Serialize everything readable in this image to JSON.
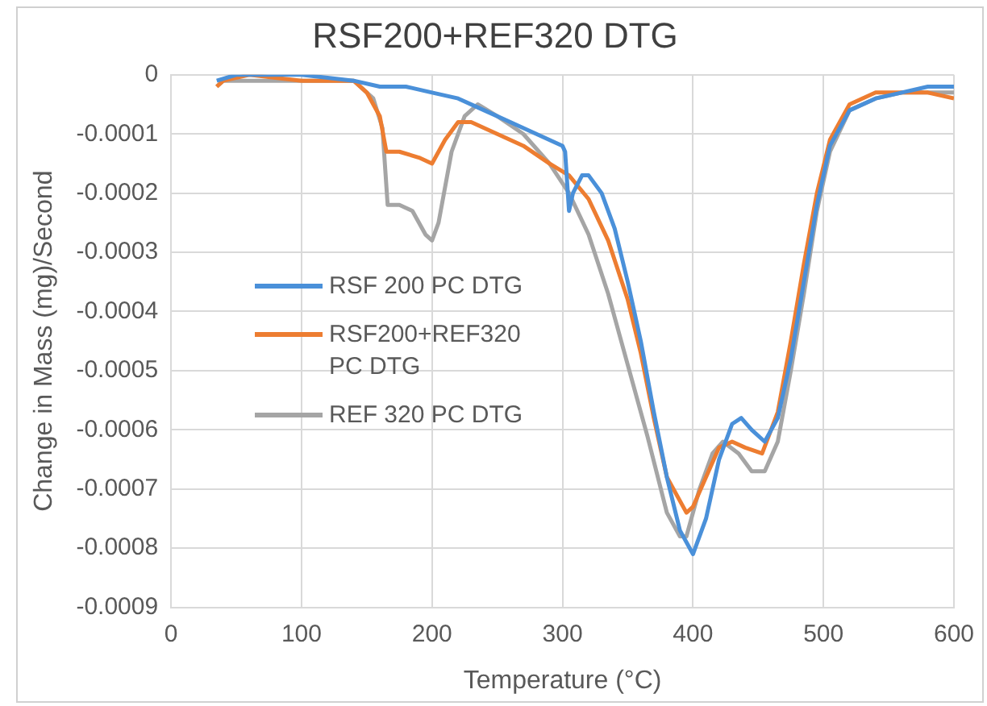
{
  "chart_data": {
    "type": "line",
    "title": "RSF200+REF320 DTG",
    "xlabel": "Temperature (°C)",
    "ylabel": "Change in Mass (mg)/Second",
    "xlim": [
      0,
      600
    ],
    "xticks": [
      0,
      100,
      200,
      300,
      400,
      500,
      600
    ],
    "ylim": [
      -0.0009,
      0
    ],
    "yticks": [
      0,
      -0.0001,
      -0.0002,
      -0.0003,
      -0.0004,
      -0.0005,
      -0.0006,
      -0.0007,
      -0.0008,
      -0.0009
    ],
    "grid": true,
    "legend": "left",
    "marker": "none",
    "line_style": "solid",
    "series": [
      {
        "name": "RSF 200 PC DTG",
        "color": "#4a90d9",
        "x": [
          35,
          50,
          100,
          140,
          160,
          180,
          200,
          220,
          240,
          260,
          280,
          300,
          302,
          305,
          308,
          315,
          320,
          330,
          340,
          350,
          360,
          370,
          380,
          390,
          400,
          410,
          420,
          430,
          437,
          445,
          455,
          465,
          475,
          485,
          495,
          505,
          520,
          540,
          560,
          580,
          600
        ],
        "values": [
          -1e-05,
          0,
          0,
          -1e-05,
          -2e-05,
          -2e-05,
          -3e-05,
          -4e-05,
          -6e-05,
          -8e-05,
          -0.0001,
          -0.00012,
          -0.00013,
          -0.00023,
          -0.0002,
          -0.00017,
          -0.00017,
          -0.0002,
          -0.00026,
          -0.00035,
          -0.00045,
          -0.00057,
          -0.00068,
          -0.00077,
          -0.00081,
          -0.00075,
          -0.00065,
          -0.00059,
          -0.00058,
          -0.0006,
          -0.00062,
          -0.00058,
          -0.00048,
          -0.00035,
          -0.00022,
          -0.00012,
          -6e-05,
          -4e-05,
          -3e-05,
          -2e-05,
          -2e-05
        ]
      },
      {
        "name": "RSF200+REF320 PC DTG",
        "color": "#ed7d31",
        "x": [
          35,
          40,
          60,
          100,
          140,
          150,
          160,
          165,
          175,
          190,
          200,
          210,
          220,
          230,
          250,
          270,
          290,
          305,
          320,
          335,
          350,
          360,
          370,
          380,
          395,
          400,
          410,
          420,
          430,
          440,
          453,
          465,
          475,
          485,
          495,
          505,
          520,
          540,
          560,
          580,
          600
        ],
        "values": [
          -2e-05,
          -1e-05,
          0,
          -1e-05,
          -1e-05,
          -3e-05,
          -7e-05,
          -0.00013,
          -0.00013,
          -0.00014,
          -0.00015,
          -0.00011,
          -8e-05,
          -8e-05,
          -0.0001,
          -0.00012,
          -0.00015,
          -0.00017,
          -0.00021,
          -0.00028,
          -0.00038,
          -0.00047,
          -0.00058,
          -0.00068,
          -0.00074,
          -0.00073,
          -0.00068,
          -0.00063,
          -0.00062,
          -0.00063,
          -0.00064,
          -0.00057,
          -0.00045,
          -0.00032,
          -0.0002,
          -0.00011,
          -5e-05,
          -3e-05,
          -3e-05,
          -3e-05,
          -4e-05
        ]
      },
      {
        "name": "REF 320 PC DTG",
        "color": "#a5a5a5",
        "x": [
          35,
          40,
          60,
          100,
          140,
          155,
          162,
          166,
          175,
          185,
          195,
          200,
          205,
          215,
          225,
          235,
          250,
          270,
          290,
          305,
          320,
          335,
          350,
          365,
          380,
          390,
          395,
          405,
          415,
          423,
          435,
          445,
          455,
          465,
          475,
          485,
          495,
          505,
          520,
          540,
          560,
          580,
          600
        ],
        "values": [
          -2e-05,
          -1e-05,
          -1e-05,
          -1e-05,
          -1e-05,
          -4e-05,
          -9e-05,
          -0.00022,
          -0.00022,
          -0.00023,
          -0.00027,
          -0.00028,
          -0.00025,
          -0.00013,
          -7e-05,
          -5e-05,
          -7e-05,
          -0.0001,
          -0.00015,
          -0.0002,
          -0.00027,
          -0.00037,
          -0.00049,
          -0.00061,
          -0.00074,
          -0.00078,
          -0.00078,
          -0.0007,
          -0.00064,
          -0.00062,
          -0.00064,
          -0.00067,
          -0.00067,
          -0.00062,
          -0.0005,
          -0.00037,
          -0.00023,
          -0.00013,
          -6e-05,
          -4e-05,
          -3e-05,
          -3e-05,
          -3e-05
        ]
      }
    ]
  }
}
